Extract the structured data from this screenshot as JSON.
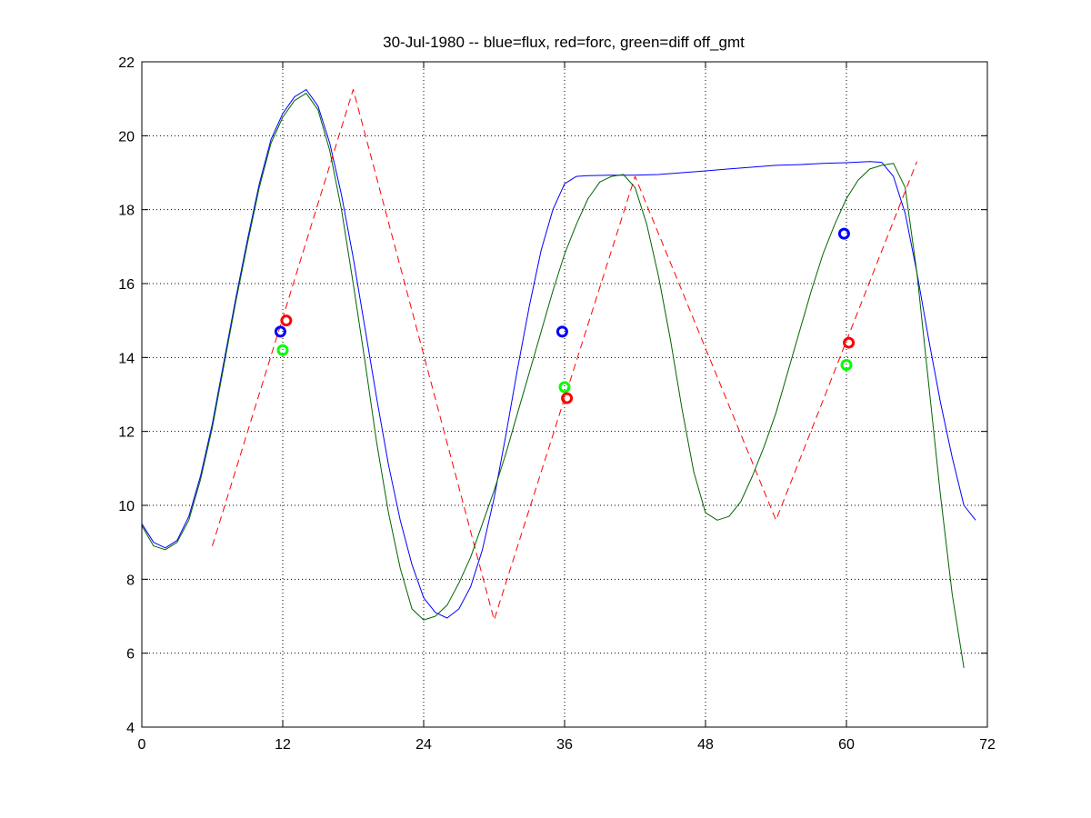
{
  "chart_data": {
    "type": "line",
    "title": "30-Jul-1980 -- blue=flux, red=forc, green=diff off_gmt",
    "xlim": [
      0,
      72
    ],
    "ylim": [
      4,
      22
    ],
    "xticks": [
      0,
      12,
      24,
      36,
      48,
      60,
      72
    ],
    "yticks": [
      4,
      6,
      8,
      10,
      12,
      14,
      16,
      18,
      20,
      22
    ],
    "grid": true,
    "series": [
      {
        "color": "#0000ff",
        "style": "solid",
        "points": [
          [
            0,
            9.5
          ],
          [
            1,
            9.0
          ],
          [
            2,
            8.85
          ],
          [
            3,
            9.05
          ],
          [
            4,
            9.7
          ],
          [
            5,
            10.8
          ],
          [
            6,
            12.2
          ],
          [
            7,
            13.9
          ],
          [
            8,
            15.6
          ],
          [
            9,
            17.2
          ],
          [
            10,
            18.7
          ],
          [
            11,
            19.9
          ],
          [
            12,
            20.6
          ],
          [
            13,
            21.05
          ],
          [
            14,
            21.25
          ],
          [
            15,
            20.8
          ],
          [
            16,
            19.8
          ],
          [
            17,
            18.4
          ],
          [
            18,
            16.7
          ],
          [
            19,
            14.8
          ],
          [
            20,
            12.9
          ],
          [
            21,
            11.1
          ],
          [
            22,
            9.6
          ],
          [
            23,
            8.4
          ],
          [
            24,
            7.5
          ],
          [
            25,
            7.1
          ],
          [
            26,
            6.95
          ],
          [
            27,
            7.2
          ],
          [
            28,
            7.8
          ],
          [
            29,
            8.8
          ],
          [
            30,
            10.2
          ],
          [
            31,
            11.9
          ],
          [
            32,
            13.7
          ],
          [
            33,
            15.4
          ],
          [
            34,
            16.9
          ],
          [
            35,
            18.0
          ],
          [
            36,
            18.7
          ],
          [
            37,
            18.9
          ],
          [
            38,
            18.92
          ],
          [
            40,
            18.93
          ],
          [
            42,
            18.93
          ],
          [
            44,
            18.95
          ],
          [
            46,
            19.0
          ],
          [
            48,
            19.05
          ],
          [
            50,
            19.1
          ],
          [
            52,
            19.15
          ],
          [
            54,
            19.2
          ],
          [
            56,
            19.22
          ],
          [
            58,
            19.25
          ],
          [
            60,
            19.27
          ],
          [
            62,
            19.3
          ],
          [
            63,
            19.28
          ],
          [
            64,
            18.9
          ],
          [
            65,
            17.9
          ],
          [
            66,
            16.3
          ],
          [
            67,
            14.5
          ],
          [
            68,
            12.8
          ],
          [
            69,
            11.3
          ],
          [
            70,
            10.0
          ],
          [
            71,
            9.6
          ]
        ]
      },
      {
        "color": "#ff0000",
        "style": "dashed",
        "points": [
          [
            6,
            8.9
          ],
          [
            18,
            21.25
          ],
          [
            30,
            6.9
          ],
          [
            42,
            18.9
          ],
          [
            54,
            9.6
          ],
          [
            66,
            19.3
          ]
        ]
      },
      {
        "color": "#006400",
        "style": "solid",
        "points": [
          [
            0,
            9.45
          ],
          [
            1,
            8.9
          ],
          [
            2,
            8.8
          ],
          [
            3,
            9.0
          ],
          [
            4,
            9.6
          ],
          [
            5,
            10.7
          ],
          [
            6,
            12.1
          ],
          [
            7,
            13.8
          ],
          [
            8,
            15.5
          ],
          [
            9,
            17.1
          ],
          [
            10,
            18.6
          ],
          [
            11,
            19.8
          ],
          [
            12,
            20.5
          ],
          [
            13,
            20.95
          ],
          [
            14,
            21.15
          ],
          [
            15,
            20.7
          ],
          [
            16,
            19.6
          ],
          [
            17,
            18.0
          ],
          [
            18,
            16.0
          ],
          [
            19,
            13.9
          ],
          [
            20,
            11.7
          ],
          [
            21,
            9.8
          ],
          [
            22,
            8.3
          ],
          [
            23,
            7.2
          ],
          [
            24,
            6.9
          ],
          [
            25,
            7.0
          ],
          [
            26,
            7.3
          ],
          [
            27,
            7.9
          ],
          [
            28,
            8.6
          ],
          [
            29,
            9.5
          ],
          [
            30,
            10.4
          ],
          [
            31,
            11.4
          ],
          [
            32,
            12.5
          ],
          [
            33,
            13.6
          ],
          [
            34,
            14.7
          ],
          [
            35,
            15.8
          ],
          [
            36,
            16.8
          ],
          [
            37,
            17.6
          ],
          [
            38,
            18.3
          ],
          [
            39,
            18.75
          ],
          [
            40,
            18.9
          ],
          [
            41,
            18.95
          ],
          [
            42,
            18.6
          ],
          [
            43,
            17.6
          ],
          [
            44,
            16.2
          ],
          [
            45,
            14.5
          ],
          [
            46,
            12.6
          ],
          [
            47,
            10.9
          ],
          [
            48,
            9.8
          ],
          [
            49,
            9.6
          ],
          [
            50,
            9.7
          ],
          [
            51,
            10.1
          ],
          [
            52,
            10.8
          ],
          [
            53,
            11.6
          ],
          [
            54,
            12.5
          ],
          [
            55,
            13.6
          ],
          [
            56,
            14.7
          ],
          [
            57,
            15.8
          ],
          [
            58,
            16.8
          ],
          [
            59,
            17.6
          ],
          [
            60,
            18.3
          ],
          [
            61,
            18.8
          ],
          [
            62,
            19.1
          ],
          [
            63,
            19.2
          ],
          [
            64,
            19.25
          ],
          [
            65,
            18.6
          ],
          [
            66,
            16.3
          ],
          [
            67,
            13.3
          ],
          [
            68,
            10.3
          ],
          [
            69,
            7.6
          ],
          [
            70,
            5.6
          ]
        ]
      }
    ],
    "markers": [
      {
        "color": "#0000ff",
        "x": 11.8,
        "y": 14.7
      },
      {
        "color": "#ff0000",
        "x": 12.3,
        "y": 15.0
      },
      {
        "color": "#00ff00",
        "x": 12.0,
        "y": 14.2
      },
      {
        "color": "#0000ff",
        "x": 35.8,
        "y": 14.7
      },
      {
        "color": "#00ff00",
        "x": 36.0,
        "y": 13.2
      },
      {
        "color": "#ff0000",
        "x": 36.2,
        "y": 12.9
      },
      {
        "color": "#0000ff",
        "x": 59.8,
        "y": 17.35
      },
      {
        "color": "#ff0000",
        "x": 60.2,
        "y": 14.4
      },
      {
        "color": "#00ff00",
        "x": 60.0,
        "y": 13.8
      }
    ]
  }
}
